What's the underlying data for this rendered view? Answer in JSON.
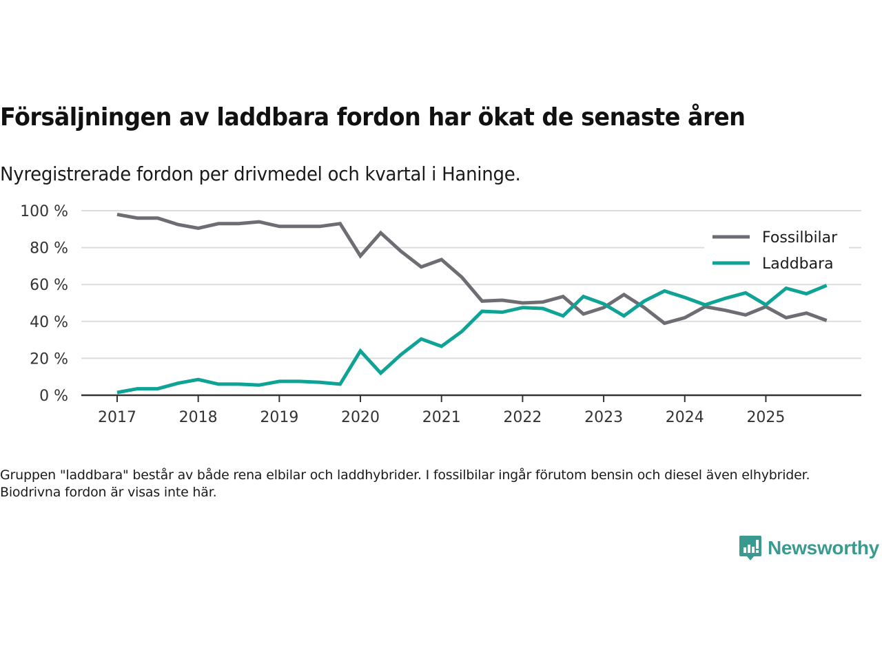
{
  "header": {
    "title": "Försäljningen av laddbara fordon har ökat de senaste åren",
    "subtitle": "Nyregistrerade fordon per drivmedel och kvartal i Haninge."
  },
  "footer": {
    "note": "Gruppen \"laddbara\" består av både rena elbilar och laddhybrider. I fossilbilar ingår förutom bensin och diesel även elhybrider. Biodrivna fordon är visas inte här.",
    "brand": "Newsworthy",
    "brand_icon": "bar-chart-speech-bubble-icon",
    "brand_color": "#3b9a8f"
  },
  "chart_data": {
    "type": "line",
    "title": "Försäljningen av laddbara fordon har ökat de senaste åren",
    "subtitle": "Nyregistrerade fordon per drivmedel och kvartal i Haninge.",
    "xlabel": "",
    "ylabel": "",
    "x": [
      "2017 Q1",
      "2017 Q2",
      "2017 Q3",
      "2017 Q4",
      "2018 Q1",
      "2018 Q2",
      "2018 Q3",
      "2018 Q4",
      "2019 Q1",
      "2019 Q2",
      "2019 Q3",
      "2019 Q4",
      "2020 Q1",
      "2020 Q2",
      "2020 Q3",
      "2020 Q4",
      "2021 Q1",
      "2021 Q2",
      "2021 Q3",
      "2021 Q4",
      "2022 Q1",
      "2022 Q2",
      "2022 Q3",
      "2022 Q4",
      "2023 Q1",
      "2023 Q2",
      "2023 Q3",
      "2023 Q4",
      "2024 Q1",
      "2024 Q2",
      "2024 Q3",
      "2024 Q4",
      "2025 Q1",
      "2025 Q2",
      "2025 Q3",
      "2025 Q4"
    ],
    "x_ticks": [
      "2017",
      "2018",
      "2019",
      "2020",
      "2021",
      "2022",
      "2023",
      "2024",
      "2025"
    ],
    "y_ticks": [
      0,
      20,
      40,
      60,
      80,
      100
    ],
    "y_tick_labels": [
      "0 %",
      "20 %",
      "40 %",
      "60 %",
      "80 %",
      "100 %"
    ],
    "ylim": [
      0,
      100
    ],
    "grid": "horizontal",
    "legend_position": "top-right",
    "series": [
      {
        "name": "Fossilbilar",
        "color": "#6e6d73",
        "values": [
          98,
          96,
          96,
          92.5,
          90.5,
          93,
          93,
          94,
          91.5,
          91.5,
          91.5,
          93,
          75.5,
          88,
          78,
          69.5,
          73.5,
          64,
          51,
          51.5,
          50,
          50.5,
          53.5,
          44,
          47.5,
          54.5,
          47.5,
          39,
          42,
          48,
          46,
          43.5,
          48,
          42,
          44.5,
          40.5
        ]
      },
      {
        "name": "Laddbara",
        "color": "#0fa396",
        "values": [
          1.5,
          3.5,
          3.5,
          6.5,
          8.5,
          6,
          6,
          5.5,
          7.5,
          7.5,
          7,
          6,
          24,
          12,
          22,
          30.5,
          26.5,
          34.5,
          45.5,
          45,
          47.5,
          47,
          43,
          53.5,
          49.5,
          43,
          51,
          56.5,
          53,
          49,
          52.5,
          55.5,
          49,
          58,
          55,
          59.5
        ]
      }
    ]
  }
}
